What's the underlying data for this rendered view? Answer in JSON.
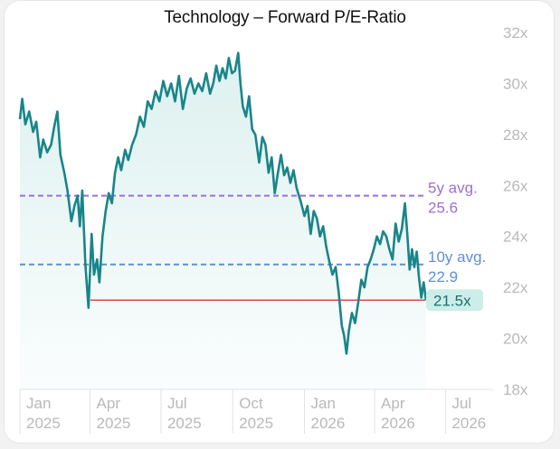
{
  "chart_data": {
    "type": "line",
    "title": "Technology – Forward P/E-Ratio",
    "ylim": [
      18,
      32
    ],
    "y_ticks": [
      "32x",
      "30x",
      "28x",
      "26x",
      "24x",
      "22x",
      "20x",
      "18x"
    ],
    "y_tick_values": [
      32,
      30,
      28,
      26,
      24,
      22,
      20,
      18
    ],
    "x_ticks": [
      {
        "month": "Jan",
        "year": "2025",
        "date": "2025-01-01"
      },
      {
        "month": "Apr",
        "year": "2025",
        "date": "2025-04-01"
      },
      {
        "month": "Jul",
        "year": "2025",
        "date": "2025-07-01"
      },
      {
        "month": "Oct",
        "year": "2025",
        "date": "2025-10-01"
      },
      {
        "month": "Jan",
        "year": "2026",
        "date": "2026-01-01"
      },
      {
        "month": "Apr",
        "year": "2026",
        "date": "2026-04-01"
      },
      {
        "month": "Jul",
        "year": "2026",
        "date": "2026-07-01"
      }
    ],
    "xlim": [
      "2025-01-01",
      "2026-08-31"
    ],
    "grid": "vertical",
    "series": [
      {
        "color": "#19858a",
        "points": [
          [
            "2025-01-01",
            28.6
          ],
          [
            "2025-01-04",
            29.4
          ],
          [
            "2025-01-08",
            28.4
          ],
          [
            "2025-01-13",
            28.9
          ],
          [
            "2025-01-18",
            28.1
          ],
          [
            "2025-01-22",
            28.5
          ],
          [
            "2025-01-27",
            27.1
          ],
          [
            "2025-01-31",
            27.8
          ],
          [
            "2025-02-05",
            27.3
          ],
          [
            "2025-02-10",
            27.6
          ],
          [
            "2025-02-14",
            28.3
          ],
          [
            "2025-02-18",
            28.9
          ],
          [
            "2025-02-22",
            27.2
          ],
          [
            "2025-02-27",
            26.5
          ],
          [
            "2025-03-03",
            25.8
          ],
          [
            "2025-03-08",
            24.6
          ],
          [
            "2025-03-12",
            25.2
          ],
          [
            "2025-03-16",
            25.6
          ],
          [
            "2025-03-19",
            24.4
          ],
          [
            "2025-03-22",
            25.8
          ],
          [
            "2025-03-26",
            22.9
          ],
          [
            "2025-03-30",
            21.2
          ],
          [
            "2025-04-03",
            24.1
          ],
          [
            "2025-04-06",
            22.5
          ],
          [
            "2025-04-10",
            23.1
          ],
          [
            "2025-04-13",
            22.2
          ],
          [
            "2025-04-17",
            24.0
          ],
          [
            "2025-04-21",
            25.0
          ],
          [
            "2025-04-25",
            25.7
          ],
          [
            "2025-04-29",
            25.3
          ],
          [
            "2025-05-03",
            26.5
          ],
          [
            "2025-05-07",
            27.1
          ],
          [
            "2025-05-11",
            26.6
          ],
          [
            "2025-05-16",
            27.4
          ],
          [
            "2025-05-20",
            27.0
          ],
          [
            "2025-05-25",
            27.6
          ],
          [
            "2025-05-30",
            28.0
          ],
          [
            "2025-06-04",
            28.7
          ],
          [
            "2025-06-09",
            28.3
          ],
          [
            "2025-06-14",
            29.3
          ],
          [
            "2025-06-19",
            29.0
          ],
          [
            "2025-06-24",
            29.7
          ],
          [
            "2025-06-29",
            29.3
          ],
          [
            "2025-07-04",
            30.1
          ],
          [
            "2025-07-09",
            29.5
          ],
          [
            "2025-07-14",
            30.0
          ],
          [
            "2025-07-19",
            29.3
          ],
          [
            "2025-07-24",
            30.3
          ],
          [
            "2025-07-29",
            29.0
          ],
          [
            "2025-08-03",
            29.8
          ],
          [
            "2025-08-08",
            30.2
          ],
          [
            "2025-08-13",
            29.6
          ],
          [
            "2025-08-18",
            30.0
          ],
          [
            "2025-08-23",
            29.7
          ],
          [
            "2025-08-28",
            30.4
          ],
          [
            "2025-09-02",
            29.6
          ],
          [
            "2025-09-06",
            30.0
          ],
          [
            "2025-09-10",
            30.7
          ],
          [
            "2025-09-14",
            30.1
          ],
          [
            "2025-09-18",
            30.6
          ],
          [
            "2025-09-22",
            30.2
          ],
          [
            "2025-09-26",
            31.0
          ],
          [
            "2025-09-30",
            30.4
          ],
          [
            "2025-10-04",
            30.5
          ],
          [
            "2025-10-08",
            31.2
          ],
          [
            "2025-10-11",
            30.0
          ],
          [
            "2025-10-14",
            29.1
          ],
          [
            "2025-10-18",
            28.7
          ],
          [
            "2025-10-22",
            29.5
          ],
          [
            "2025-10-26",
            28.2
          ],
          [
            "2025-10-30",
            28.0
          ],
          [
            "2025-11-04",
            26.9
          ],
          [
            "2025-11-08",
            27.9
          ],
          [
            "2025-11-12",
            27.6
          ],
          [
            "2025-11-16",
            26.5
          ],
          [
            "2025-11-20",
            27.1
          ],
          [
            "2025-11-24",
            25.7
          ],
          [
            "2025-11-28",
            26.5
          ],
          [
            "2025-12-02",
            27.2
          ],
          [
            "2025-12-06",
            26.4
          ],
          [
            "2025-12-10",
            26.7
          ],
          [
            "2025-12-14",
            26.1
          ],
          [
            "2025-12-18",
            26.6
          ],
          [
            "2025-12-22",
            25.9
          ],
          [
            "2025-12-27",
            25.4
          ],
          [
            "2026-01-01",
            24.8
          ],
          [
            "2026-01-05",
            25.2
          ],
          [
            "2026-01-09",
            24.1
          ],
          [
            "2026-01-13",
            25.0
          ],
          [
            "2026-01-17",
            24.7
          ],
          [
            "2026-01-21",
            24.0
          ],
          [
            "2026-01-25",
            24.4
          ],
          [
            "2026-01-29",
            23.6
          ],
          [
            "2026-02-02",
            23.0
          ],
          [
            "2026-02-06",
            22.5
          ],
          [
            "2026-02-10",
            22.8
          ],
          [
            "2026-02-14",
            21.8
          ],
          [
            "2026-02-18",
            20.5
          ],
          [
            "2026-02-21",
            20.1
          ],
          [
            "2026-02-24",
            19.4
          ],
          [
            "2026-02-27",
            20.3
          ],
          [
            "2026-03-03",
            21.0
          ],
          [
            "2026-03-07",
            20.6
          ],
          [
            "2026-03-11",
            21.4
          ],
          [
            "2026-03-15",
            22.3
          ],
          [
            "2026-03-19",
            22.0
          ],
          [
            "2026-03-23",
            22.8
          ],
          [
            "2026-03-27",
            23.1
          ],
          [
            "2026-03-31",
            23.5
          ],
          [
            "2026-04-04",
            24.0
          ],
          [
            "2026-04-08",
            23.7
          ],
          [
            "2026-04-12",
            24.2
          ],
          [
            "2026-04-16",
            24.0
          ],
          [
            "2026-04-20",
            23.5
          ],
          [
            "2026-04-24",
            23.1
          ],
          [
            "2026-04-28",
            24.5
          ],
          [
            "2026-05-02",
            23.8
          ],
          [
            "2026-05-06",
            24.3
          ],
          [
            "2026-05-10",
            25.3
          ],
          [
            "2026-05-13",
            24.1
          ],
          [
            "2026-05-16",
            22.7
          ],
          [
            "2026-05-19",
            23.5
          ],
          [
            "2026-05-22",
            22.8
          ],
          [
            "2026-05-25",
            23.4
          ],
          [
            "2026-05-28",
            22.4
          ],
          [
            "2026-05-31",
            21.6
          ],
          [
            "2026-06-03",
            22.2
          ],
          [
            "2026-06-06",
            21.5
          ]
        ]
      }
    ],
    "reference_lines": [
      {
        "label": "5y avg.",
        "value_label": "25.6x",
        "display_value": "25.6",
        "value": 25.6,
        "color": "#9b6fd6",
        "style": "dashed"
      },
      {
        "label": "10y avg.",
        "value_label": "22.9x",
        "display_value": "22.9",
        "value": 22.9,
        "color": "#5f8fd8",
        "style": "dashed"
      },
      {
        "label": "",
        "value_label": "21.5x",
        "value": 21.5,
        "color": "#d94a4a",
        "style": "solid"
      }
    ],
    "current_value_badge": {
      "label": "21.5x",
      "color": "#cdeee8",
      "text_color": "#1a6f70"
    }
  }
}
